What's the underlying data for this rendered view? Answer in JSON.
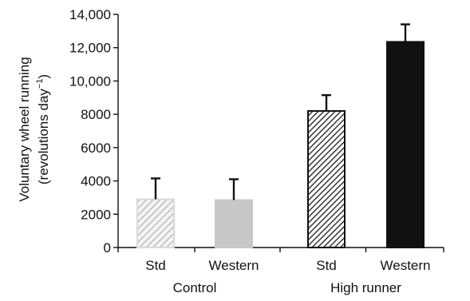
{
  "chart_data": {
    "type": "bar",
    "categories": [
      "Std",
      "Western",
      "Std",
      "Western"
    ],
    "groups": [
      {
        "label": "Control",
        "categories": [
          0,
          1
        ]
      },
      {
        "label": "High runner",
        "categories": [
          2,
          3
        ]
      }
    ],
    "values": [
      2900,
      2850,
      8200,
      12350
    ],
    "error_upper": [
      1250,
      1250,
      950,
      1050
    ],
    "bar_styles": [
      "light-hatch",
      "light-gray",
      "dark-hatch",
      "black"
    ],
    "bar_colors": [
      "#c9c9c9",
      "#c8c8c8",
      "#1a1a1a",
      "#111111"
    ],
    "ylabel_line1": "Voluntary wheel running",
    "ylabel_line2": "(revolutions day",
    "ylabel_sup": "−1",
    "ylabel_close": ")",
    "ylim": [
      0,
      14000
    ],
    "yticks": [
      0,
      2000,
      4000,
      6000,
      8000,
      10000,
      12000,
      14000
    ],
    "ytick_labels": [
      "0",
      "2000",
      "4000",
      "6000",
      "8000",
      "10,000",
      "12,000",
      "14,000"
    ],
    "grid": false,
    "legend": "none"
  }
}
